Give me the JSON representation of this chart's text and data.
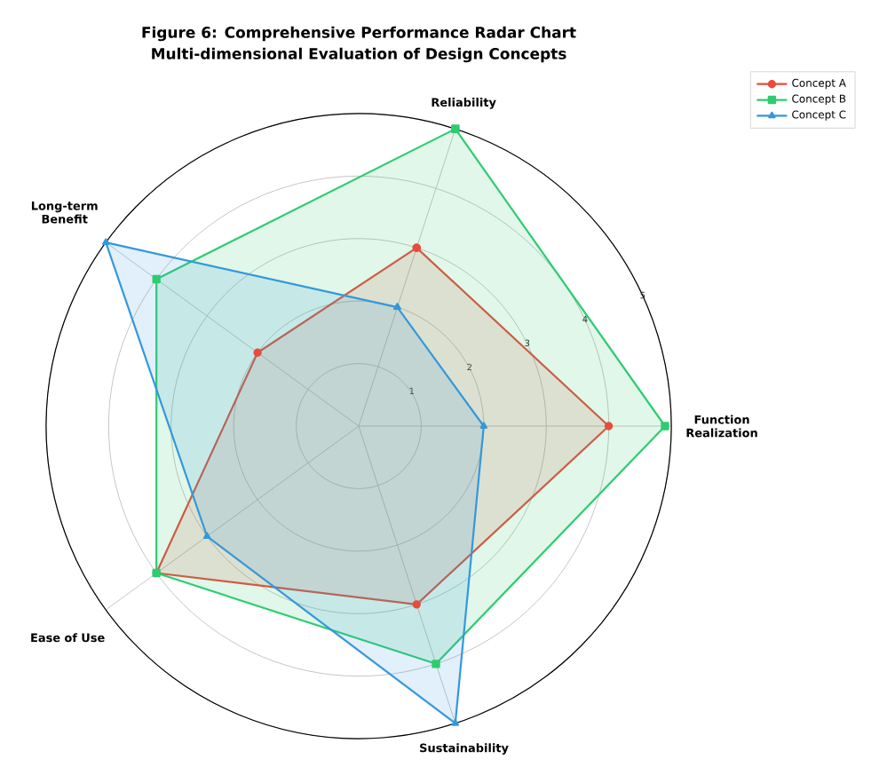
{
  "chart_data": {
    "type": "radar",
    "title": "Figure 6: Comprehensive Performance Radar Chart",
    "subtitle": "Multi-dimensional Evaluation of Design Concepts",
    "categories": [
      "Reliability",
      "Function Realization",
      "Sustainability",
      "Ease of Use",
      "Long-term Benefit"
    ],
    "series": [
      {
        "name": "Concept A",
        "color": "#e74c3c",
        "marker": "circle",
        "values": [
          3,
          4,
          3,
          4,
          2
        ]
      },
      {
        "name": "Concept B",
        "color": "#2ecc71",
        "marker": "square",
        "values": [
          5,
          4.9,
          4,
          4,
          4
        ]
      },
      {
        "name": "Concept C",
        "color": "#3498db",
        "marker": "triangle",
        "values": [
          2,
          2,
          5,
          3,
          5
        ]
      }
    ],
    "ylim": [
      0,
      5
    ],
    "yticks": [
      1,
      2,
      3,
      4,
      5
    ],
    "grid": true,
    "legend": "top right"
  }
}
